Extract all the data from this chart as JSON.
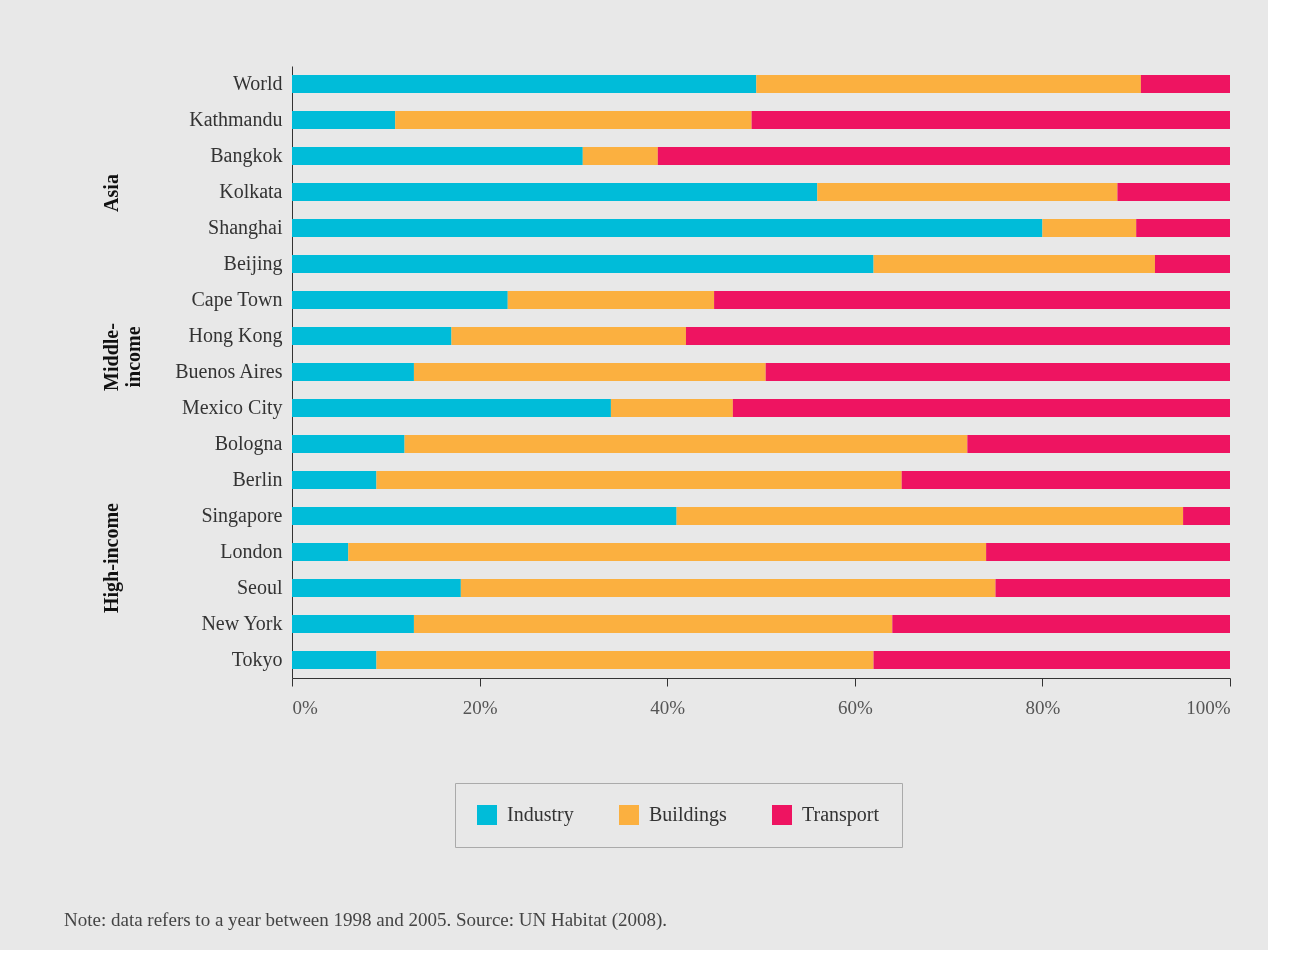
{
  "chart_data": {
    "type": "bar",
    "orientation": "horizontal",
    "stacked": true,
    "categories": [
      "World",
      "Kathmandu",
      "Bangkok",
      "Kolkata",
      "Shanghai",
      "Beijing",
      "Cape Town",
      "Hong Kong",
      "Buenos Aires",
      "Mexico City",
      "Bologna",
      "Berlin",
      "Singapore",
      "London",
      "Seoul",
      "New York",
      "Tokyo"
    ],
    "series": [
      {
        "name": "Industry",
        "color": "#00bcd9",
        "values": [
          49.5,
          11,
          31,
          56,
          80,
          62,
          23,
          17,
          13,
          34,
          12,
          9,
          41,
          6,
          18,
          13,
          9
        ]
      },
      {
        "name": "Buildings",
        "color": "#fbb040",
        "values": [
          41,
          38,
          8,
          32,
          10,
          30,
          22,
          25,
          37.5,
          13,
          60,
          56,
          54,
          68,
          57,
          51,
          53
        ]
      },
      {
        "name": "Transport",
        "color": "#ee1461",
        "values": [
          9.5,
          51,
          61,
          12,
          10,
          8,
          55,
          58,
          49.5,
          53,
          28,
          35,
          5,
          26,
          25,
          36,
          38
        ]
      }
    ],
    "xlim": [
      0,
      100
    ],
    "xticks": [
      {
        "value": 0,
        "label": "0%"
      },
      {
        "value": 20,
        "label": "20%"
      },
      {
        "value": 40,
        "label": "40%"
      },
      {
        "value": 60,
        "label": "60%"
      },
      {
        "value": 80,
        "label": "80%"
      },
      {
        "value": 100,
        "label": "100%"
      }
    ],
    "grid": false,
    "legend": "bottom",
    "annotations": [
      "Asia",
      "Middle-\nincome",
      "High-income",
      "Note: data refers to a year between 1998 and 2005. Source: UN Habitat (2008)."
    ]
  }
}
